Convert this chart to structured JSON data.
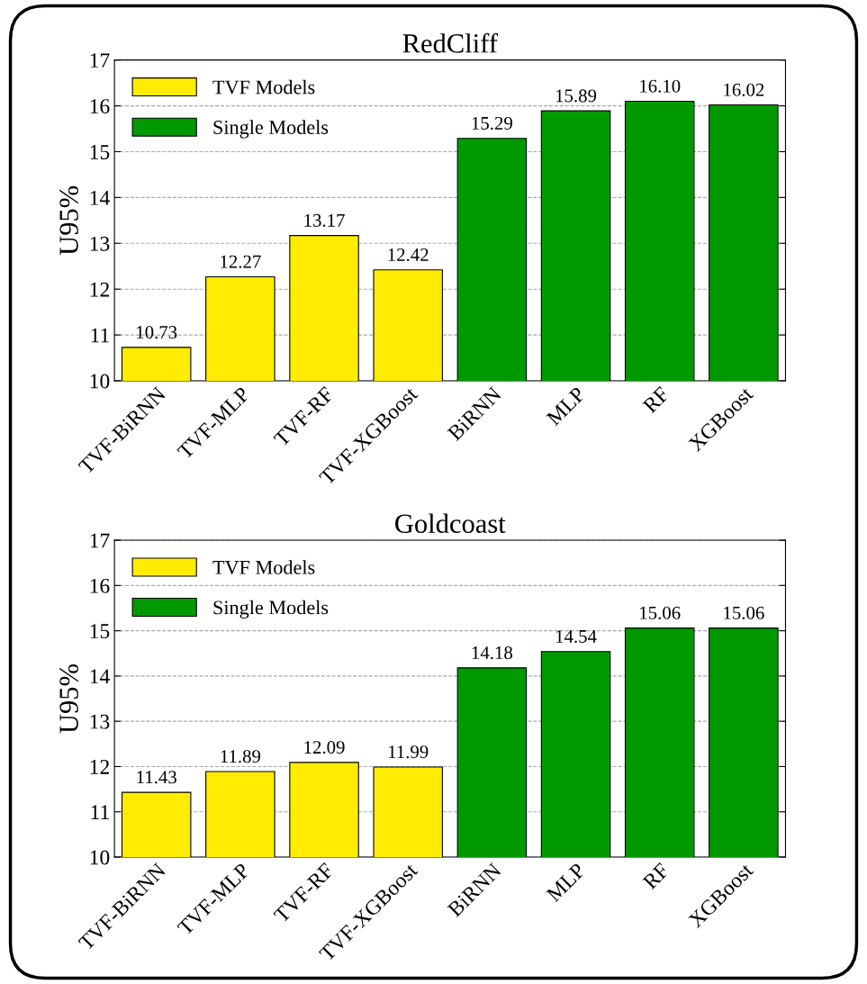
{
  "chart_data": [
    {
      "type": "bar",
      "title": "RedCliff",
      "ylabel": "U95%",
      "categories": [
        "TVF-BiRNN",
        "TVF-MLP",
        "TVF-RF",
        "TVF-XGBoost",
        "BiRNN",
        "MLP",
        "RF",
        "XGBoost"
      ],
      "series": [
        {
          "name": "TVF Models",
          "color": "#ffec00",
          "values": [
            10.73,
            12.27,
            13.17,
            12.42,
            null,
            null,
            null,
            null
          ],
          "value_labels": [
            "10.73",
            "12.27",
            "13.17",
            "12.42",
            null,
            null,
            null,
            null
          ]
        },
        {
          "name": "Single Models",
          "color": "#009a00",
          "values": [
            null,
            null,
            null,
            null,
            15.29,
            15.89,
            16.1,
            16.02
          ],
          "value_labels": [
            null,
            null,
            null,
            null,
            "15.29",
            "15.89",
            "16.10",
            "16.02"
          ]
        }
      ],
      "ylim": [
        10,
        17
      ],
      "yticks": [
        10,
        11,
        12,
        13,
        14,
        15,
        16,
        17
      ],
      "grid": "y",
      "legend": "top left"
    },
    {
      "type": "bar",
      "title": "Goldcoast",
      "ylabel": "U95%",
      "categories": [
        "TVF-BiRNN",
        "TVF-MLP",
        "TVF-RF",
        "TVF-XGBoost",
        "BiRNN",
        "MLP",
        "RF",
        "XGBoost"
      ],
      "series": [
        {
          "name": "TVF Models",
          "color": "#ffec00",
          "values": [
            11.43,
            11.89,
            12.09,
            11.99,
            null,
            null,
            null,
            null
          ],
          "value_labels": [
            "11.43",
            "11.89",
            "12.09",
            "11.99",
            null,
            null,
            null,
            null
          ]
        },
        {
          "name": "Single Models",
          "color": "#009a00",
          "values": [
            null,
            null,
            null,
            null,
            14.18,
            14.54,
            15.06,
            15.06
          ],
          "value_labels": [
            null,
            null,
            null,
            null,
            "14.18",
            "14.54",
            "15.06",
            "15.06"
          ]
        }
      ],
      "ylim": [
        10,
        17
      ],
      "yticks": [
        10,
        11,
        12,
        13,
        14,
        15,
        16,
        17
      ],
      "grid": "y",
      "legend": "top left"
    }
  ]
}
